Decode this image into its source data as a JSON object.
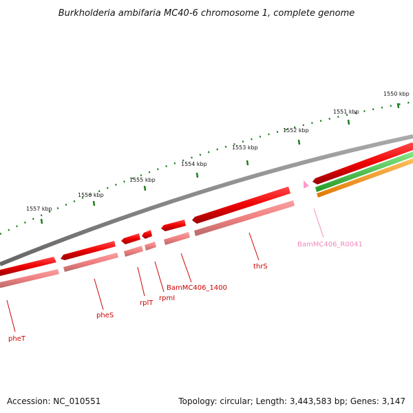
{
  "title": "Burkholderia ambifaria MC40-6 chromosome 1, complete genome",
  "footer": {
    "accession": "Accession: NC_010551",
    "topology": "Topology: circular; Length: 3,443,583 bp; Genes: 3,147"
  },
  "colors": {
    "backbone": "#808080",
    "cds_forward": "#ff0000",
    "cds_reverse": "#f08080",
    "rna": "#ff9ac8",
    "track_green": "#44c844",
    "track_orange": "#ff9a20",
    "ticks": "#1e7d1e"
  },
  "map": {
    "kbp_labels": [
      "1550 kbp",
      "1551 kbp",
      "1552 kbp",
      "1553 kbp",
      "1554 kbp",
      "1555 kbp",
      "1556 kbp",
      "1557 kbp"
    ],
    "genes": [
      {
        "label": "pheT",
        "color": "#cc0000"
      },
      {
        "label": "pheS",
        "color": "#cc0000"
      },
      {
        "label": "rplT",
        "color": "#cc0000"
      },
      {
        "label": "rpmI",
        "color": "#cc0000"
      },
      {
        "label": "BamMC406_1400",
        "color": "#cc0000"
      },
      {
        "label": "thrS",
        "color": "#cc0000"
      },
      {
        "label": "BamMC406_R0041",
        "color": "#ee88bb"
      }
    ]
  }
}
